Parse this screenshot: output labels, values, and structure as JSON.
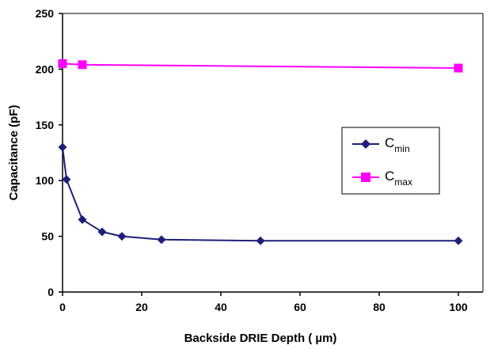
{
  "chart_data": {
    "type": "line",
    "xlabel": "Backside DRIE Depth ( µm)",
    "ylabel": "Capacitance (pF)",
    "xlim": [
      0,
      100
    ],
    "ylim": [
      0,
      250
    ],
    "xticks": [
      "0",
      "20",
      "40",
      "60",
      "80",
      "100"
    ],
    "yticks": [
      "0",
      "50",
      "100",
      "150",
      "200",
      "250"
    ],
    "grid": false,
    "legend_position": "right",
    "series": [
      {
        "name": "Cmin",
        "name_main": "C",
        "name_sub": "min",
        "color": "#1f1f7a",
        "marker": "diamond",
        "x": [
          0,
          1,
          5,
          10,
          15,
          25,
          50,
          100
        ],
        "y": [
          130,
          101,
          65,
          54,
          50,
          47,
          46,
          46
        ]
      },
      {
        "name": "Cmax",
        "name_main": "C",
        "name_sub": "max",
        "color": "#ff00ff",
        "marker": "square",
        "x": [
          0,
          5,
          100
        ],
        "y": [
          205,
          204,
          201
        ]
      }
    ]
  }
}
